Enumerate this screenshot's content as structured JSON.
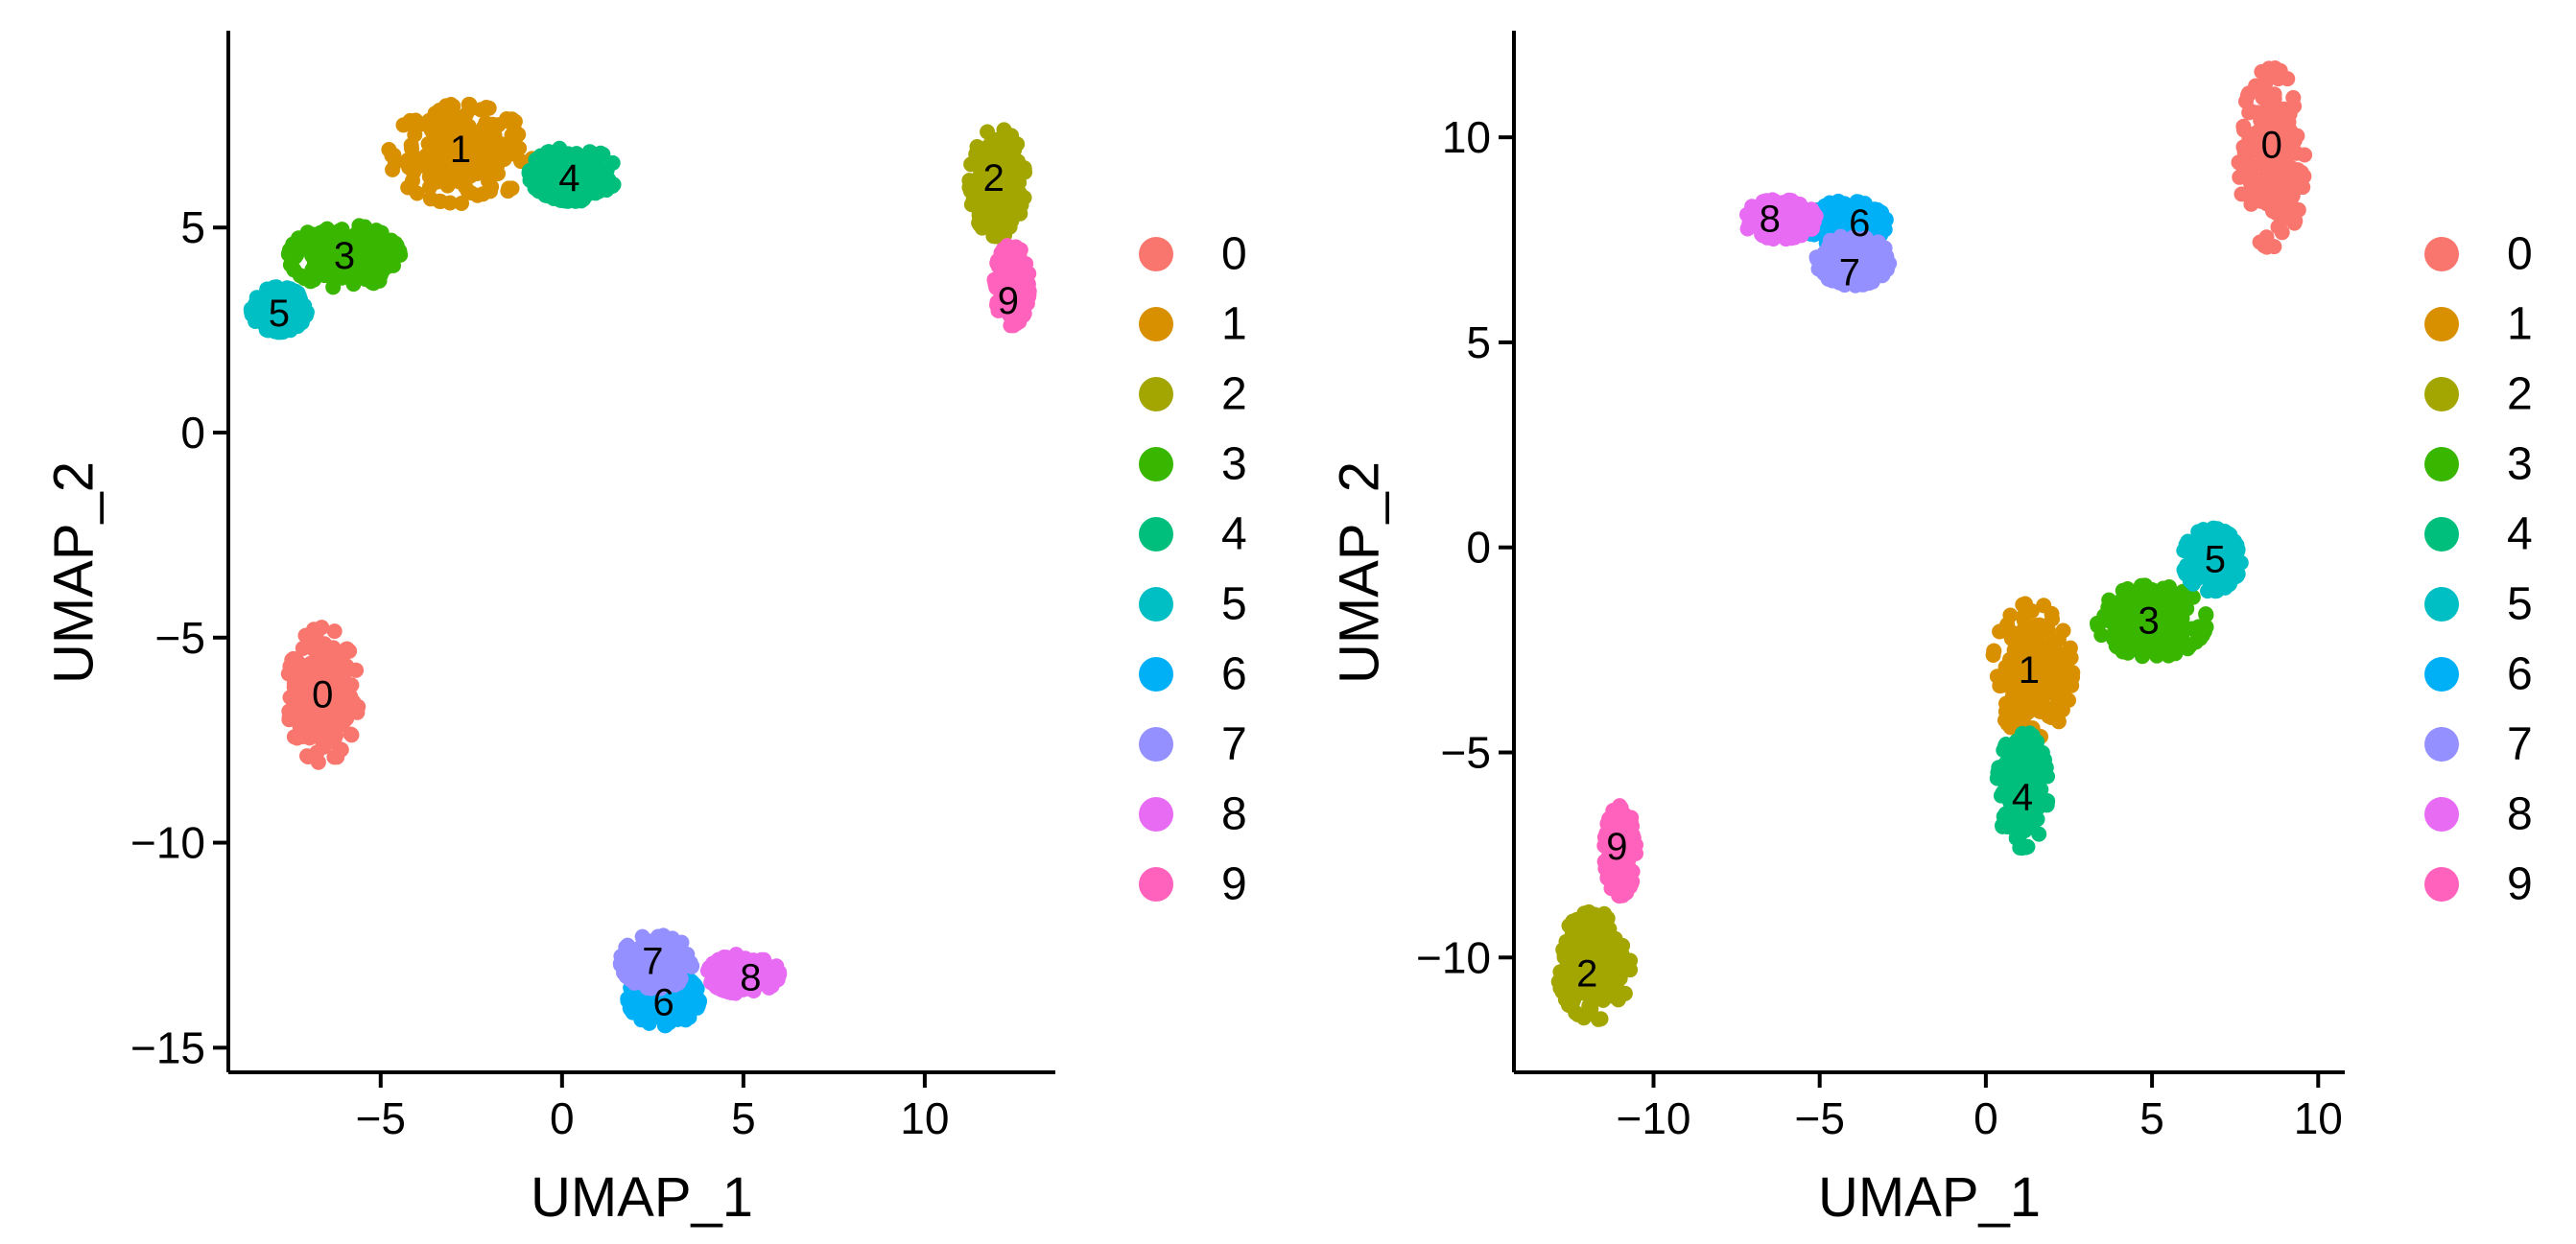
{
  "cluster_colors": {
    "0": "#F8766D",
    "1": "#D89000",
    "2": "#A3A500",
    "3": "#39B600",
    "4": "#00BF7D",
    "5": "#00BFC4",
    "6": "#00B0F6",
    "7": "#9590FF",
    "8": "#E76BF3",
    "9": "#FF62BC"
  },
  "chart_data": [
    {
      "type": "scatter",
      "title": "",
      "xlabel": "UMAP_1",
      "ylabel": "UMAP_2",
      "xlim": [
        -9.2,
        13.6
      ],
      "ylim": [
        -15.6,
        9.8
      ],
      "xticks": [
        -5,
        0,
        5,
        10
      ],
      "yticks": [
        -15,
        -10,
        -5,
        0,
        5
      ],
      "xtick_labels": [
        "−5",
        "0",
        "5",
        "10"
      ],
      "ytick_labels": [
        "−15",
        "−10",
        "−5",
        "0",
        "5"
      ],
      "legend": {
        "position": "right",
        "title": "",
        "entries": [
          "0",
          "1",
          "2",
          "3",
          "4",
          "5",
          "6",
          "7",
          "8",
          "9"
        ]
      },
      "clusters": [
        {
          "id": "0",
          "label": "0",
          "cx": -6.6,
          "cy": -6.4,
          "sx": 0.45,
          "sy": 0.75,
          "label_pos": [
            -6.6,
            -6.4
          ]
        },
        {
          "id": "1",
          "label": "1",
          "cx": -2.8,
          "cy": 6.8,
          "sx": 0.9,
          "sy": 0.55,
          "label_pos": [
            -2.8,
            6.9
          ]
        },
        {
          "id": "2",
          "label": "2",
          "cx": 12.0,
          "cy": 6.1,
          "sx": 0.35,
          "sy": 0.6,
          "label_pos": [
            11.9,
            6.2
          ]
        },
        {
          "id": "3",
          "label": "3",
          "cx": -6.0,
          "cy": 4.3,
          "sx": 0.7,
          "sy": 0.35,
          "label_pos": [
            -6.0,
            4.3
          ]
        },
        {
          "id": "4",
          "label": "4",
          "cx": 0.3,
          "cy": 6.3,
          "sx": 0.55,
          "sy": 0.3,
          "label_pos": [
            0.2,
            6.2
          ]
        },
        {
          "id": "5",
          "label": "5",
          "cx": -7.8,
          "cy": 3.0,
          "sx": 0.35,
          "sy": 0.25,
          "label_pos": [
            -7.8,
            2.9
          ]
        },
        {
          "id": "6",
          "label": "6",
          "cx": 2.8,
          "cy": -13.8,
          "sx": 0.45,
          "sy": 0.3,
          "label_pos": [
            2.8,
            -13.9
          ]
        },
        {
          "id": "7",
          "label": "7",
          "cx": 2.6,
          "cy": -12.9,
          "sx": 0.45,
          "sy": 0.3,
          "label_pos": [
            2.5,
            -12.9
          ]
        },
        {
          "id": "8",
          "label": "8",
          "cx": 5.0,
          "cy": -13.2,
          "sx": 0.45,
          "sy": 0.22,
          "label_pos": [
            5.2,
            -13.3
          ]
        },
        {
          "id": "9",
          "label": "9",
          "cx": 12.4,
          "cy": 3.6,
          "sx": 0.22,
          "sy": 0.45,
          "label_pos": [
            12.3,
            3.2
          ]
        }
      ]
    },
    {
      "type": "scatter",
      "title": "",
      "xlabel": "UMAP_1",
      "ylabel": "UMAP_2",
      "xlim": [
        -14.2,
        10.8
      ],
      "ylim": [
        -12.8,
        12.6
      ],
      "xticks": [
        -10,
        -5,
        0,
        5,
        10
      ],
      "yticks": [
        -10,
        -5,
        0,
        5,
        10
      ],
      "xtick_labels": [
        "−10",
        "−5",
        "0",
        "5",
        "10"
      ],
      "ytick_labels": [
        "−10",
        "−5",
        "0",
        "5",
        "10"
      ],
      "legend": {
        "position": "right",
        "title": "",
        "entries": [
          "0",
          "1",
          "2",
          "3",
          "4",
          "5",
          "6",
          "7",
          "8",
          "9"
        ]
      },
      "clusters": [
        {
          "id": "0",
          "label": "0",
          "cx": 8.6,
          "cy": 9.5,
          "sx": 0.45,
          "sy": 1.0,
          "label_pos": [
            8.6,
            9.8
          ]
        },
        {
          "id": "1",
          "label": "1",
          "cx": 1.4,
          "cy": -3.0,
          "sx": 0.55,
          "sy": 0.75,
          "label_pos": [
            1.3,
            -3.0
          ]
        },
        {
          "id": "2",
          "label": "2",
          "cx": -11.8,
          "cy": -10.2,
          "sx": 0.5,
          "sy": 0.6,
          "label_pos": [
            -12.0,
            -10.4
          ]
        },
        {
          "id": "3",
          "label": "3",
          "cx": 5.0,
          "cy": -1.8,
          "sx": 0.75,
          "sy": 0.4,
          "label_pos": [
            4.9,
            -1.8
          ]
        },
        {
          "id": "4",
          "label": "4",
          "cx": 1.1,
          "cy": -5.9,
          "sx": 0.35,
          "sy": 0.65,
          "label_pos": [
            1.1,
            -6.1
          ]
        },
        {
          "id": "5",
          "label": "5",
          "cx": 6.8,
          "cy": -0.3,
          "sx": 0.4,
          "sy": 0.35,
          "label_pos": [
            6.9,
            -0.3
          ]
        },
        {
          "id": "6",
          "label": "6",
          "cx": -4.2,
          "cy": 7.9,
          "sx": 0.55,
          "sy": 0.25,
          "label_pos": [
            -3.8,
            7.9
          ]
        },
        {
          "id": "7",
          "label": "7",
          "cx": -4.0,
          "cy": 7.0,
          "sx": 0.5,
          "sy": 0.28,
          "label_pos": [
            -4.1,
            6.7
          ]
        },
        {
          "id": "8",
          "label": "8",
          "cx": -6.2,
          "cy": 8.0,
          "sx": 0.5,
          "sy": 0.22,
          "label_pos": [
            -6.5,
            8.0
          ]
        },
        {
          "id": "9",
          "label": "9",
          "cx": -11.0,
          "cy": -7.4,
          "sx": 0.22,
          "sy": 0.5,
          "label_pos": [
            -11.1,
            -7.3
          ]
        }
      ]
    }
  ]
}
